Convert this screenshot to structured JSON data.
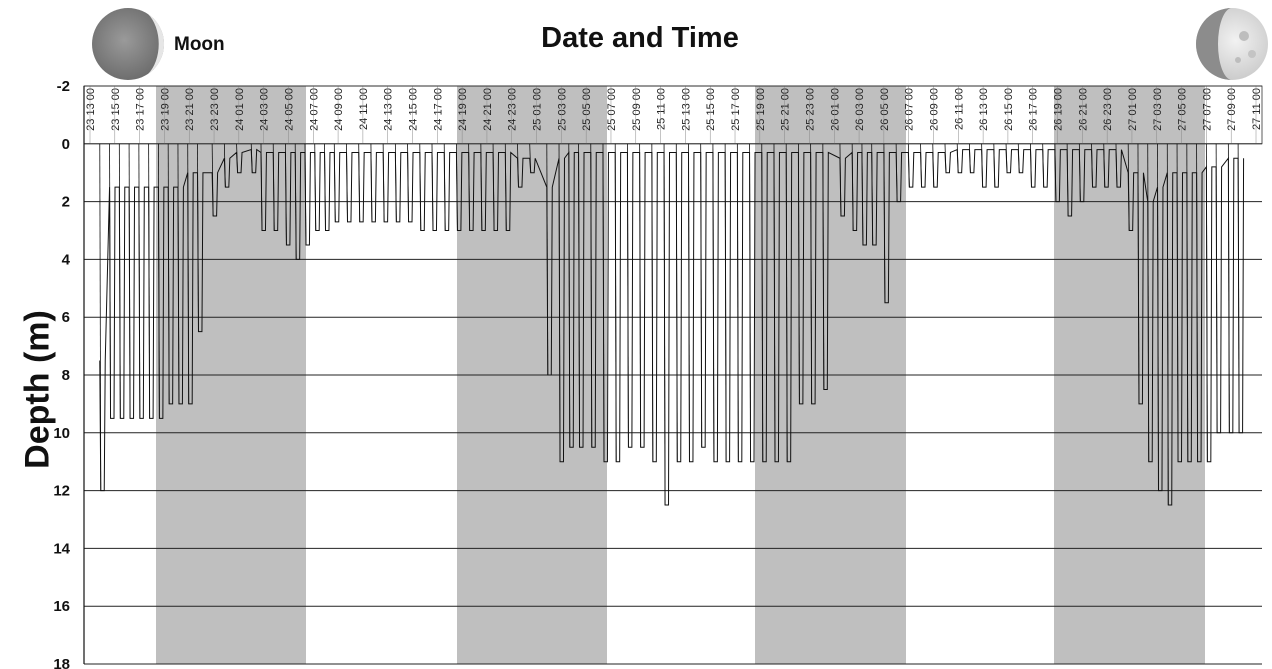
{
  "title": "Date and Time",
  "moon_label": "Moon",
  "icons": {
    "left_moon": "waxing-crescent-moon-icon",
    "right_moon": "waxing-gibbous-moon-icon"
  },
  "colors": {
    "night_shade": "#bfbfbf",
    "trace": "#111111",
    "grid": "#222222"
  },
  "chart_data": {
    "type": "line",
    "title": "Date and Time",
    "xlabel": "",
    "ylabel": "Depth (m)",
    "ylim": [
      18,
      -2
    ],
    "y_ticks": [
      -2,
      0,
      2,
      4,
      6,
      8,
      10,
      12,
      14,
      16,
      18
    ],
    "x_ticks": [
      "23 13 00",
      "23 15 00",
      "23 17 00",
      "23 19 00",
      "23 21 00",
      "23 23 00",
      "24 01 00",
      "24 03 00",
      "24 05 00",
      "24 07 00",
      "24 09 00",
      "24 11 00",
      "24 13 00",
      "24 15 00",
      "24 17 00",
      "24 19 00",
      "24 21 00",
      "24 23 00",
      "25 01 00",
      "25 03 00",
      "25 05 00",
      "25 07 00",
      "25 09 00",
      "25 11 00",
      "25 13 00",
      "25 15 00",
      "25 17 00",
      "25 19 00",
      "25 21 00",
      "25 23 00",
      "26 01 00",
      "26 03 00",
      "26 05 00",
      "26 07 00",
      "26 09 00",
      "26 11 00",
      "26 13 00",
      "26 15 00",
      "26 17 00",
      "26 19 00",
      "26 21 00",
      "26 23 00",
      "27 01 00",
      "27 03 00",
      "27 05 00",
      "27 07 00",
      "27 09 00",
      "27 11 00"
    ],
    "x_range_hours": [
      0,
      47.5
    ],
    "grid": true,
    "night_periods_hours": [
      [
        6.5,
        18.5
      ],
      [
        30.5,
        42.5
      ],
      [
        54.5,
        66.5
      ],
      [
        78.5,
        90.5
      ],
      [
        102.5,
        114.5
      ]
    ],
    "series": [
      {
        "dives": [
          {
            "t": 0.4,
            "surface": 7.5,
            "bottom": 12
          },
          {
            "t": 0.8,
            "surface": 1.5,
            "bottom": 9.5
          },
          {
            "t": 1.2,
            "surface": 1.5,
            "bottom": 9.5
          },
          {
            "t": 1.6,
            "surface": 1.5,
            "bottom": 9.5
          },
          {
            "t": 2.0,
            "surface": 1.5,
            "bottom": 9.5
          },
          {
            "t": 2.4,
            "surface": 1.5,
            "bottom": 9.5
          },
          {
            "t": 2.8,
            "surface": 1.5,
            "bottom": 9.5
          },
          {
            "t": 3.2,
            "surface": 1.5,
            "bottom": 9.0
          },
          {
            "t": 3.6,
            "surface": 1.5,
            "bottom": 9.0
          },
          {
            "t": 4.0,
            "surface": 1.0,
            "bottom": 9.0
          },
          {
            "t": 4.4,
            "surface": 1.0,
            "bottom": 6.5
          },
          {
            "t": 5.0,
            "surface": 1.0,
            "bottom": 2.5
          },
          {
            "t": 5.5,
            "surface": 0.5,
            "bottom": 1.5
          },
          {
            "t": 6.0,
            "surface": 0.3,
            "bottom": 1.0
          },
          {
            "t": 6.6,
            "surface": 0.2,
            "bottom": 1.0
          },
          {
            "t": 7.0,
            "surface": 0.3,
            "bottom": 3.0
          },
          {
            "t": 7.5,
            "surface": 0.3,
            "bottom": 3.0
          },
          {
            "t": 8.0,
            "surface": 0.3,
            "bottom": 3.5
          },
          {
            "t": 8.4,
            "surface": 0.3,
            "bottom": 4.0
          },
          {
            "t": 8.8,
            "surface": 0.3,
            "bottom": 3.5
          },
          {
            "t": 9.2,
            "surface": 0.3,
            "bottom": 3.0
          },
          {
            "t": 9.6,
            "surface": 0.3,
            "bottom": 3.0
          },
          {
            "t": 10.0,
            "surface": 0.3,
            "bottom": 2.7
          },
          {
            "t": 10.5,
            "surface": 0.3,
            "bottom": 2.7
          },
          {
            "t": 11.0,
            "surface": 0.3,
            "bottom": 2.7
          },
          {
            "t": 11.5,
            "surface": 0.3,
            "bottom": 2.7
          },
          {
            "t": 12.0,
            "surface": 0.3,
            "bottom": 2.7
          },
          {
            "t": 12.5,
            "surface": 0.3,
            "bottom": 2.7
          },
          {
            "t": 13.0,
            "surface": 0.3,
            "bottom": 2.7
          },
          {
            "t": 13.5,
            "surface": 0.3,
            "bottom": 3.0
          },
          {
            "t": 14.0,
            "surface": 0.3,
            "bottom": 3.0
          },
          {
            "t": 14.5,
            "surface": 0.3,
            "bottom": 3.0
          },
          {
            "t": 15.0,
            "surface": 0.3,
            "bottom": 3.0
          },
          {
            "t": 15.5,
            "surface": 0.3,
            "bottom": 3.0
          },
          {
            "t": 16.0,
            "surface": 0.3,
            "bottom": 3.0
          },
          {
            "t": 16.5,
            "surface": 0.3,
            "bottom": 3.0
          },
          {
            "t": 17.0,
            "surface": 0.3,
            "bottom": 3.0
          },
          {
            "t": 17.5,
            "surface": 0.5,
            "bottom": 1.5
          },
          {
            "t": 18.0,
            "surface": 0.5,
            "bottom": 1.0
          },
          {
            "t": 18.7,
            "surface": 1.5,
            "bottom": 8.0
          },
          {
            "t": 19.2,
            "surface": 0.5,
            "bottom": 11.0
          },
          {
            "t": 19.6,
            "surface": 0.3,
            "bottom": 10.5
          },
          {
            "t": 20.0,
            "surface": 0.3,
            "bottom": 10.5
          },
          {
            "t": 20.5,
            "surface": 0.3,
            "bottom": 10.5
          },
          {
            "t": 21.0,
            "surface": 0.3,
            "bottom": 11.0
          },
          {
            "t": 21.5,
            "surface": 0.3,
            "bottom": 11.0
          },
          {
            "t": 22.0,
            "surface": 0.3,
            "bottom": 10.5
          },
          {
            "t": 22.5,
            "surface": 0.3,
            "bottom": 10.5
          },
          {
            "t": 23.0,
            "surface": 0.3,
            "bottom": 11.0
          },
          {
            "t": 23.5,
            "surface": 0.3,
            "bottom": 12.5
          },
          {
            "t": 24.0,
            "surface": 0.3,
            "bottom": 11.0
          },
          {
            "t": 24.5,
            "surface": 0.3,
            "bottom": 11.0
          },
          {
            "t": 25.0,
            "surface": 0.3,
            "bottom": 10.5
          },
          {
            "t": 25.5,
            "surface": 0.3,
            "bottom": 11.0
          },
          {
            "t": 26.0,
            "surface": 0.3,
            "bottom": 11.0
          },
          {
            "t": 26.5,
            "surface": 0.3,
            "bottom": 11.0
          },
          {
            "t": 27.0,
            "surface": 0.3,
            "bottom": 11.0
          },
          {
            "t": 27.5,
            "surface": 0.3,
            "bottom": 11.0
          },
          {
            "t": 28.0,
            "surface": 0.3,
            "bottom": 11.0
          },
          {
            "t": 28.5,
            "surface": 0.3,
            "bottom": 11.0
          },
          {
            "t": 29.0,
            "surface": 0.3,
            "bottom": 9.0
          },
          {
            "t": 29.5,
            "surface": 0.3,
            "bottom": 9.0
          },
          {
            "t": 30.0,
            "surface": 0.3,
            "bottom": 8.5
          },
          {
            "t": 30.7,
            "surface": 0.5,
            "bottom": 2.5
          },
          {
            "t": 31.2,
            "surface": 0.3,
            "bottom": 3.0
          },
          {
            "t": 31.6,
            "surface": 0.3,
            "bottom": 3.5
          },
          {
            "t": 32.0,
            "surface": 0.3,
            "bottom": 3.5
          },
          {
            "t": 32.5,
            "surface": 0.3,
            "bottom": 5.5
          },
          {
            "t": 33.0,
            "surface": 0.3,
            "bottom": 2.0
          },
          {
            "t": 33.5,
            "surface": 0.3,
            "bottom": 1.5
          },
          {
            "t": 34.0,
            "surface": 0.3,
            "bottom": 1.5
          },
          {
            "t": 34.5,
            "surface": 0.3,
            "bottom": 1.5
          },
          {
            "t": 35.0,
            "surface": 0.3,
            "bottom": 1.0
          },
          {
            "t": 35.5,
            "surface": 0.2,
            "bottom": 1.0
          },
          {
            "t": 36.0,
            "surface": 0.2,
            "bottom": 1.0
          },
          {
            "t": 36.5,
            "surface": 0.2,
            "bottom": 1.5
          },
          {
            "t": 37.0,
            "surface": 0.2,
            "bottom": 1.5
          },
          {
            "t": 37.5,
            "surface": 0.2,
            "bottom": 1.0
          },
          {
            "t": 38.0,
            "surface": 0.2,
            "bottom": 1.0
          },
          {
            "t": 38.5,
            "surface": 0.2,
            "bottom": 1.5
          },
          {
            "t": 39.0,
            "surface": 0.2,
            "bottom": 1.5
          },
          {
            "t": 39.5,
            "surface": 0.2,
            "bottom": 2.0
          },
          {
            "t": 40.0,
            "surface": 0.2,
            "bottom": 2.5
          },
          {
            "t": 40.5,
            "surface": 0.2,
            "bottom": 2.0
          },
          {
            "t": 41.0,
            "surface": 0.2,
            "bottom": 1.5
          },
          {
            "t": 41.5,
            "surface": 0.2,
            "bottom": 1.5
          },
          {
            "t": 42.0,
            "surface": 0.2,
            "bottom": 1.5
          },
          {
            "t": 42.5,
            "surface": 1.0,
            "bottom": 3.0
          },
          {
            "t": 42.9,
            "surface": 1.0,
            "bottom": 9.0
          },
          {
            "t": 43.3,
            "surface": 2.0,
            "bottom": 11.0
          },
          {
            "t": 43.7,
            "surface": 1.5,
            "bottom": 12.0
          },
          {
            "t": 44.1,
            "surface": 1.0,
            "bottom": 12.5
          },
          {
            "t": 44.5,
            "surface": 1.0,
            "bottom": 11.0
          },
          {
            "t": 44.9,
            "surface": 1.0,
            "bottom": 11.0
          },
          {
            "t": 45.3,
            "surface": 1.0,
            "bottom": 11.0
          },
          {
            "t": 45.7,
            "surface": 0.8,
            "bottom": 11.0
          },
          {
            "t": 46.1,
            "surface": 0.8,
            "bottom": 10.0
          },
          {
            "t": 46.6,
            "surface": 0.5,
            "bottom": 10.0
          },
          {
            "t": 47.0,
            "surface": 0.5,
            "bottom": 10.0
          }
        ]
      }
    ]
  }
}
